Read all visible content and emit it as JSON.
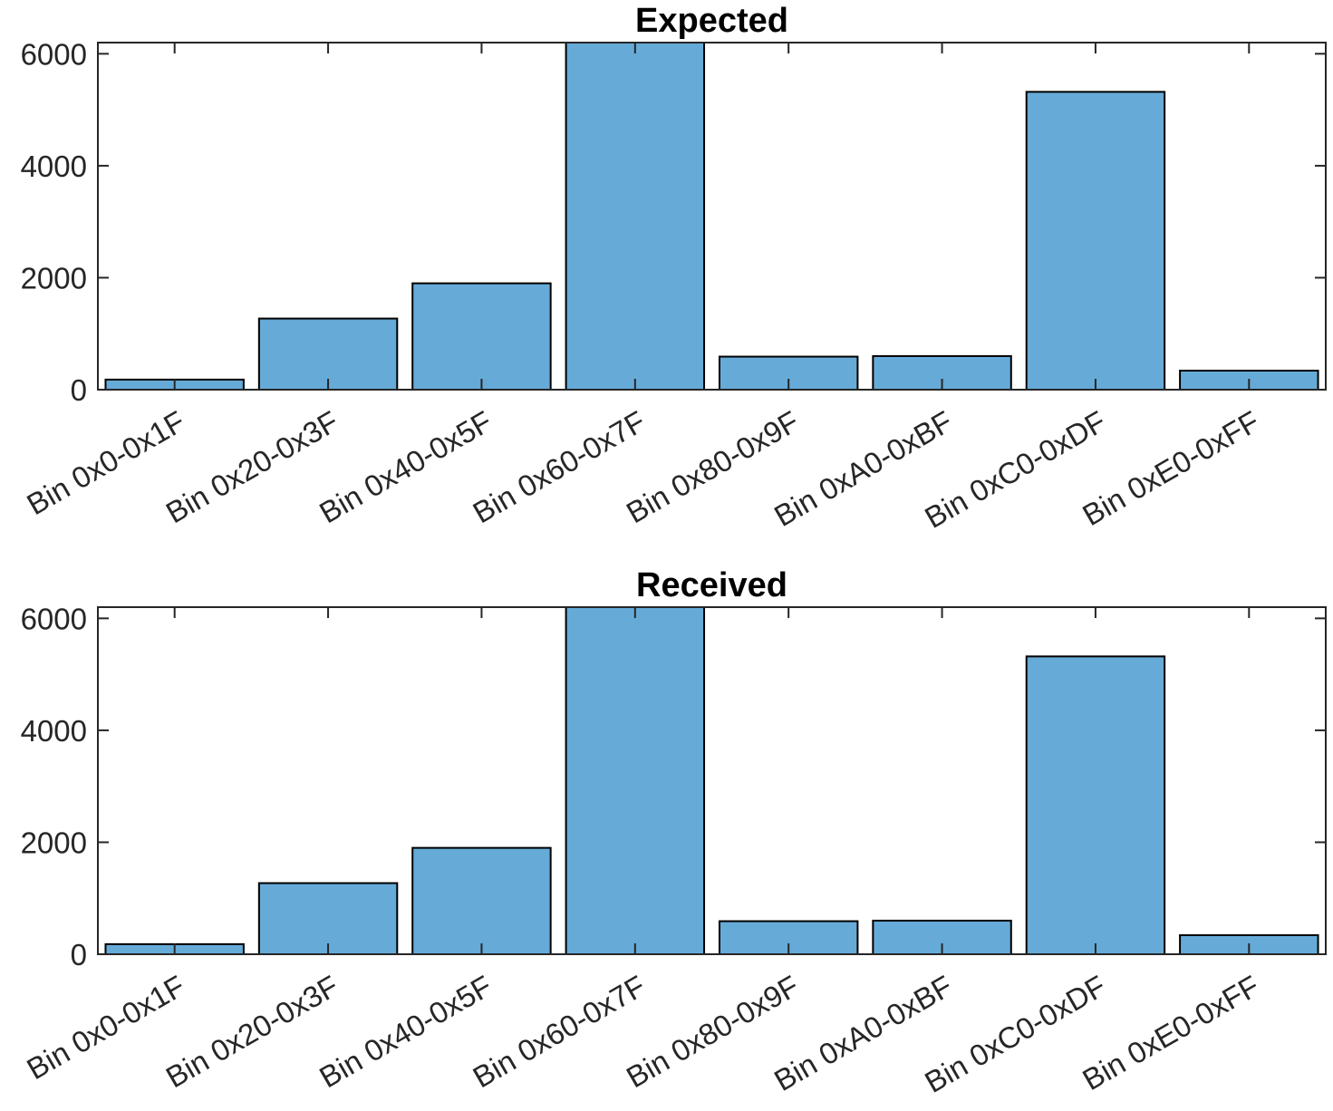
{
  "chart_data": [
    {
      "type": "bar",
      "title": "Expected",
      "xlabel": "",
      "ylabel": "",
      "ylim": [
        0,
        6200
      ],
      "yticks": [
        0,
        2000,
        4000,
        6000
      ],
      "categories": [
        "Bin 0x0-0x1F",
        "Bin 0x20-0x3F",
        "Bin 0x40-0x5F",
        "Bin 0x60-0x7F",
        "Bin 0x80-0x9F",
        "Bin 0xA0-0xBF",
        "Bin 0xC0-0xDF",
        "Bin 0xE0-0xFF"
      ],
      "values": [
        180,
        1270,
        1900,
        6200,
        590,
        600,
        5320,
        340
      ],
      "bar_color": "#66aad8",
      "grid": false
    },
    {
      "type": "bar",
      "title": "Received",
      "xlabel": "",
      "ylabel": "",
      "ylim": [
        0,
        6200
      ],
      "yticks": [
        0,
        2000,
        4000,
        6000
      ],
      "categories": [
        "Bin 0x0-0x1F",
        "Bin 0x20-0x3F",
        "Bin 0x40-0x5F",
        "Bin 0x60-0x7F",
        "Bin 0x80-0x9F",
        "Bin 0xA0-0xBF",
        "Bin 0xC0-0xDF",
        "Bin 0xE0-0xFF"
      ],
      "values": [
        180,
        1270,
        1900,
        6200,
        590,
        600,
        5320,
        340
      ],
      "bar_color": "#66aad8",
      "grid": false
    }
  ]
}
